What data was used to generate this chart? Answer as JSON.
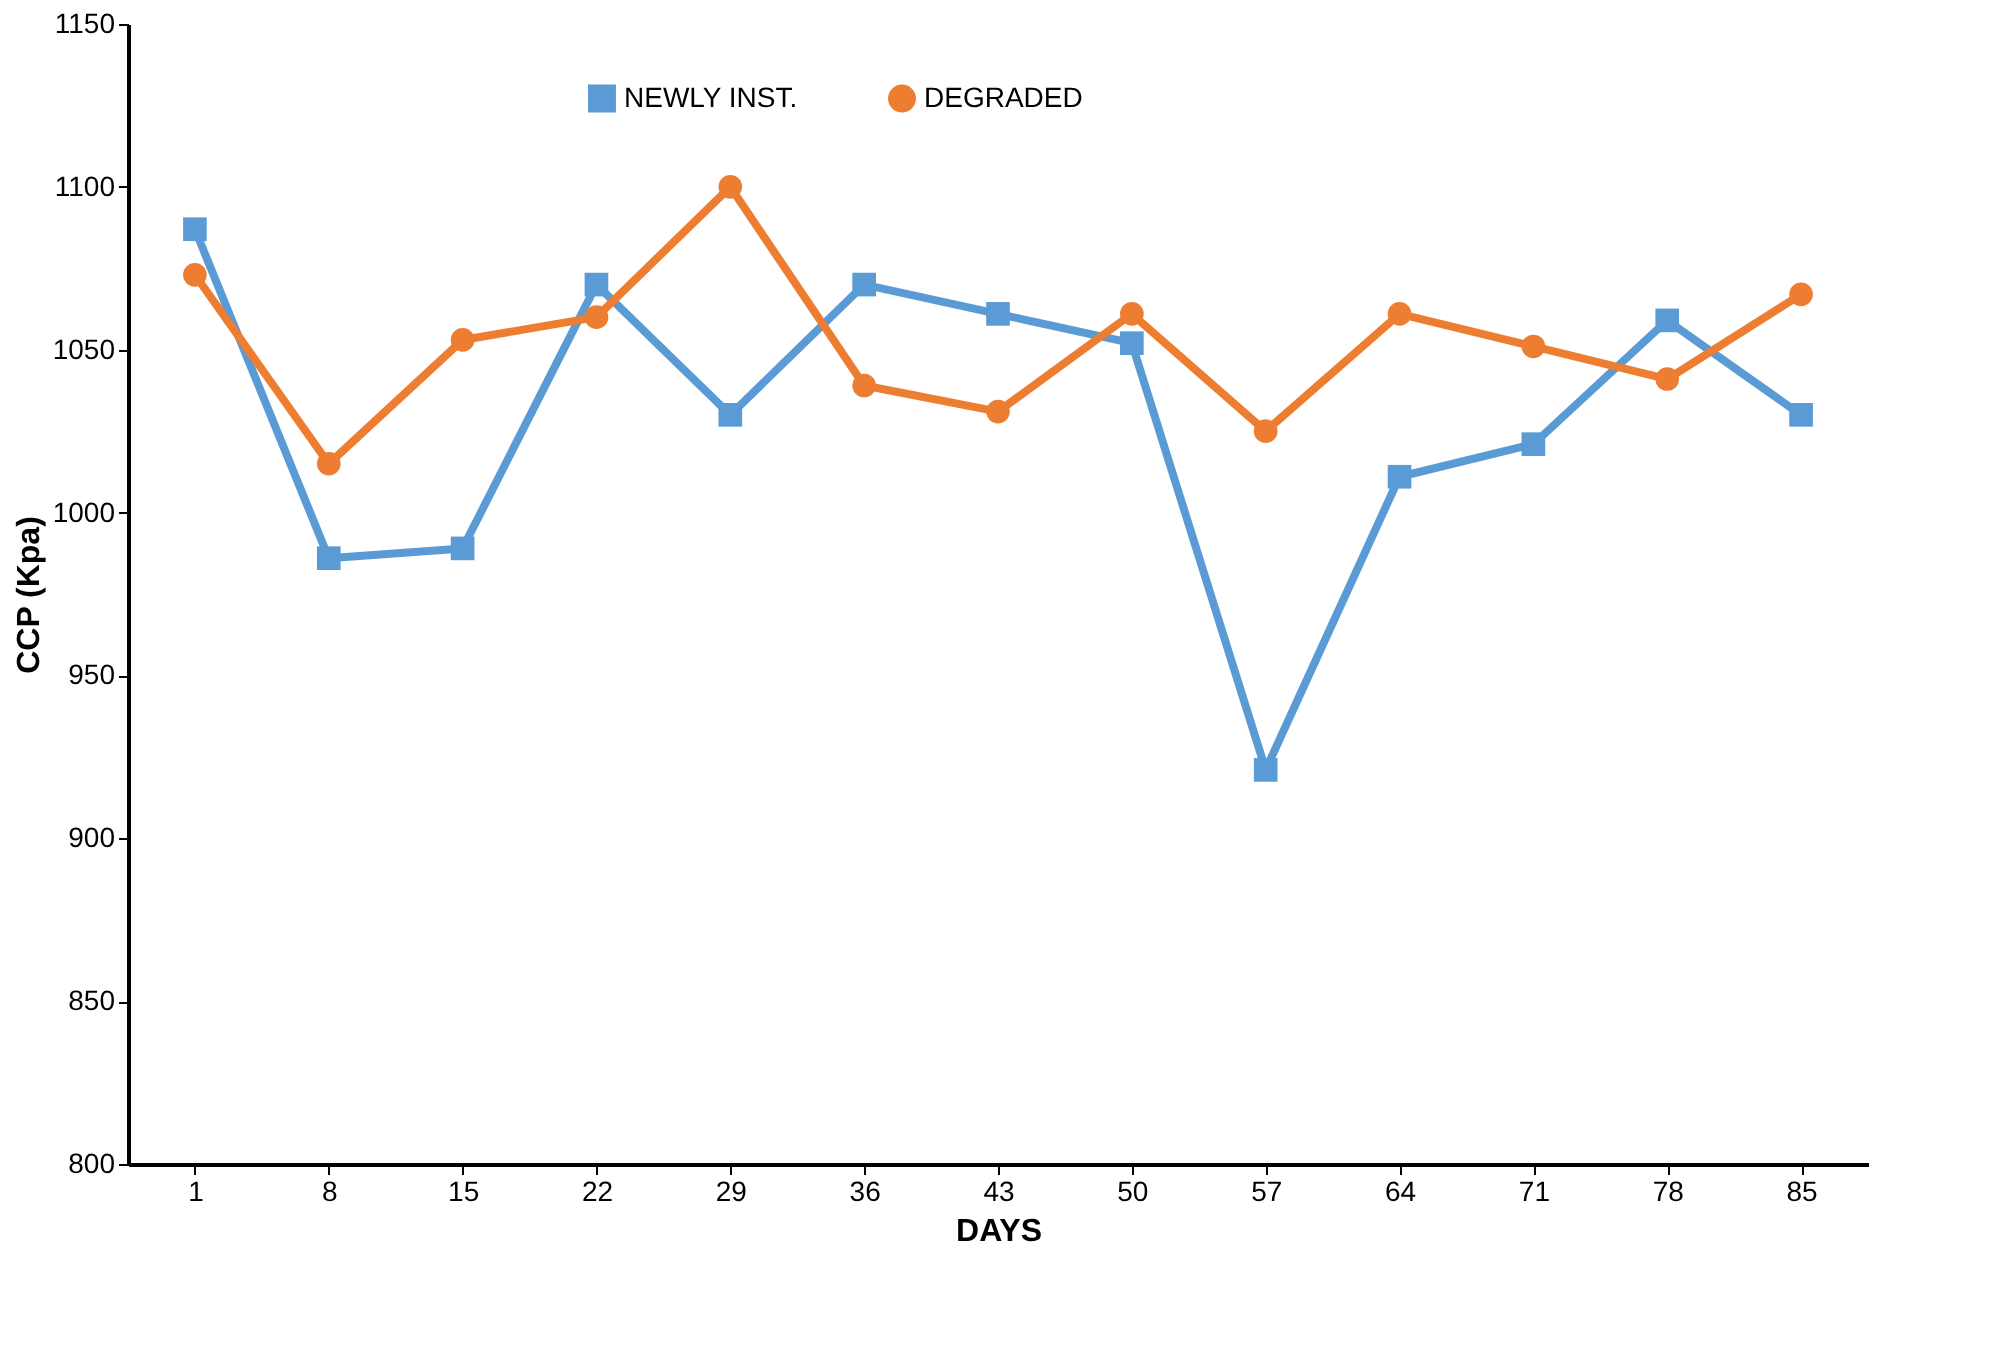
{
  "chart_data": {
    "type": "line",
    "xlabel": "DAYS",
    "ylabel": "CCP (Kpa)",
    "categories": [
      "1",
      "8",
      "15",
      "22",
      "29",
      "36",
      "43",
      "50",
      "57",
      "64",
      "71",
      "78",
      "85"
    ],
    "series": [
      {
        "name": "NEWLY INST.",
        "color": "#5b9bd5",
        "marker": "square",
        "values": [
          1087,
          986,
          989,
          1070,
          1030,
          1070,
          1061,
          1052,
          921,
          1011,
          1021,
          1059,
          1030
        ]
      },
      {
        "name": "DEGRADED",
        "color": "#ed7d31",
        "marker": "circle",
        "values": [
          1073,
          1015,
          1053,
          1060,
          1100,
          1039,
          1031,
          1061,
          1025,
          1061,
          1051,
          1041,
          1067
        ]
      }
    ],
    "ylim": [
      800,
      1150
    ],
    "yticks": [
      800,
      850,
      900,
      950,
      1000,
      1050,
      1100,
      1150
    ],
    "grid": false,
    "legend": "top"
  }
}
